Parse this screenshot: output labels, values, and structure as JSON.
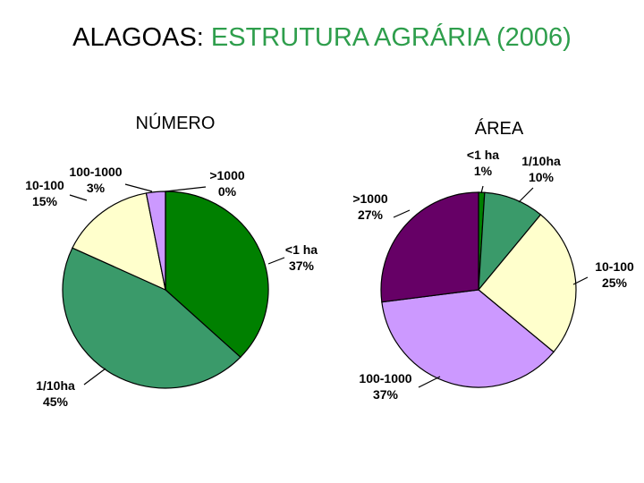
{
  "title": {
    "prefix": "ALAGOAS:",
    "main": "ESTRUTURA AGRÁRIA (2006)"
  },
  "chart_data": [
    {
      "type": "pie",
      "title": "NÚMERO",
      "categories": [
        "<1 ha",
        "1/10ha",
        "10-100",
        "100-1000",
        ">1000"
      ],
      "values": [
        37,
        45,
        15,
        3,
        0
      ],
      "value_labels": [
        "37%",
        "45%",
        "15%",
        "3%",
        "0%"
      ],
      "colors": [
        "#008000",
        "#3a9a6a",
        "#ffffcc",
        "#cc99ff",
        "#660066"
      ]
    },
    {
      "type": "pie",
      "title": "ÁREA",
      "categories": [
        "<1 ha",
        "1/10ha",
        "10-100",
        "100-1000",
        ">1000"
      ],
      "values": [
        1,
        10,
        25,
        37,
        27
      ],
      "value_labels": [
        "1%",
        "10%",
        "25%",
        "37%",
        "27%"
      ],
      "colors": [
        "#008000",
        "#3a9a6a",
        "#ffffcc",
        "#cc99ff",
        "#660066"
      ]
    }
  ]
}
